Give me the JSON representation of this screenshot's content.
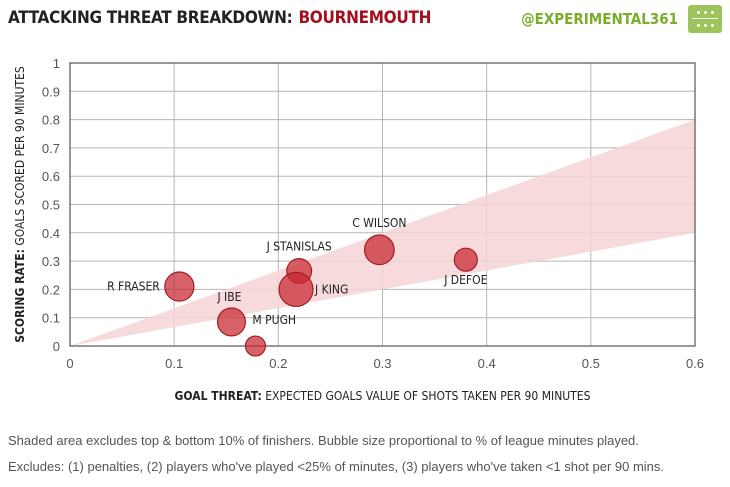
{
  "header": {
    "title_prefix": "ATTACKING THREAT BREAKDOWN:",
    "team": "BOURNEMOUTH",
    "handle": "@EXPERIMENTAL361",
    "logo_icon": "pitch-icon"
  },
  "colors": {
    "team": "#a30f1d",
    "handle": "#7aad2a",
    "bubble": "#c8252f",
    "band": "#f6d4d6"
  },
  "chart_data": {
    "type": "scatter",
    "xlabel_bold": "GOAL THREAT:",
    "xlabel_rest": "EXPECTED GOALS VALUE OF SHOTS TAKEN PER 90 MINUTES",
    "ylabel_bold": "SCORING RATE:",
    "ylabel_rest": "GOALS SCORED PER 90 MINUTES",
    "xlim": [
      0,
      0.6
    ],
    "ylim": [
      0,
      1
    ],
    "x_ticks": [
      "0",
      "0.1",
      "0.2",
      "0.3",
      "0.4",
      "0.5",
      "0.6"
    ],
    "y_ticks": [
      "0",
      "0.1",
      "0.2",
      "0.3",
      "0.4",
      "0.5",
      "0.6",
      "0.7",
      "0.8",
      "0.9",
      "1"
    ],
    "grid": true,
    "band": {
      "lower_at_xmax": 0.4,
      "upper_at_xmax": 0.8
    },
    "points": [
      {
        "name": "R FRASER",
        "x": 0.105,
        "y": 0.21,
        "size": 0.78,
        "label_side": "left"
      },
      {
        "name": "J IBE",
        "x": 0.155,
        "y": 0.085,
        "size": 0.72,
        "label_side": "above-left"
      },
      {
        "name": "M PUGH",
        "x": 0.178,
        "y": 0.0,
        "size": 0.36,
        "label_side": "above-right"
      },
      {
        "name": "J STANISLAS",
        "x": 0.22,
        "y": 0.265,
        "size": 0.58,
        "label_side": "above"
      },
      {
        "name": "J KING",
        "x": 0.217,
        "y": 0.2,
        "size": 1.0,
        "label_side": "right"
      },
      {
        "name": "C WILSON",
        "x": 0.297,
        "y": 0.34,
        "size": 0.8,
        "label_side": "above"
      },
      {
        "name": "J DEFOE",
        "x": 0.38,
        "y": 0.305,
        "size": 0.5,
        "label_side": "below"
      }
    ]
  },
  "footer": {
    "line1": "Shaded area excludes top & bottom 10% of finishers. Bubble size proportional to % of league minutes played.",
    "line2": "Excludes: (1) penalties, (2) players who've played <25% of minutes, (3) players who've taken <1 shot per 90 mins."
  }
}
